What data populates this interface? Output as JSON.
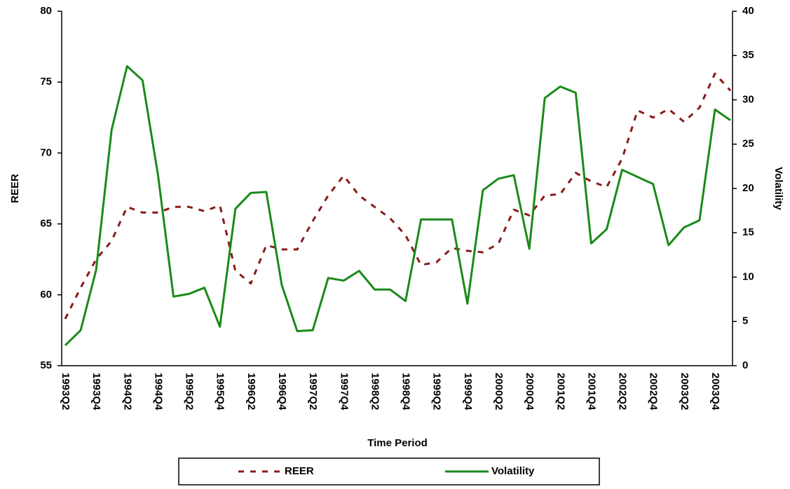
{
  "chart_data": {
    "type": "line",
    "x_label": "Time Period",
    "y_label": "REER",
    "y2_label": "Volatility",
    "categories": [
      "1993Q2",
      null,
      "1993Q4",
      null,
      "1994Q2",
      null,
      "1994Q4",
      null,
      "1995Q2",
      null,
      "1995Q4",
      null,
      "1996Q2",
      null,
      "1996Q4",
      null,
      "1997Q2",
      null,
      "1997Q4",
      null,
      "1998Q2",
      null,
      "1998Q4",
      null,
      "1999Q2",
      null,
      "1999Q4",
      null,
      "2000Q2",
      null,
      "2000Q4",
      null,
      "2001Q2",
      null,
      "2001Q4",
      null,
      "2002Q2",
      null,
      "2002Q4",
      null,
      "2003Q2",
      null,
      "2003Q4",
      null
    ],
    "series": [
      {
        "name": "REER",
        "color": "#8b1a1a",
        "line_style": "dashed",
        "values": [
          58.3,
          60.5,
          62.5,
          63.8,
          66.2,
          65.8,
          65.8,
          66.2,
          66.2,
          65.9,
          66.3,
          61.7,
          60.8,
          63.5,
          63.2,
          63.2,
          65.2,
          67.0,
          68.4,
          67.0,
          66.2,
          65.4,
          64.2,
          62.1,
          62.3,
          63.3,
          63.1,
          63.0,
          63.6,
          66.0,
          65.6,
          67.0,
          67.1,
          68.6,
          68.0,
          67.6,
          69.6,
          73.0,
          72.5,
          73.1,
          72.2,
          73.2,
          75.6,
          74.4
        ]
      },
      {
        "name": "Volatility",
        "color": "#1a8a1a",
        "line_style": "solid",
        "axis": "y2",
        "values": [
          2.3,
          4.0,
          10.8,
          26.6,
          33.8,
          32.2,
          21.5,
          7.8,
          8.1,
          8.8,
          4.4,
          17.7,
          19.5,
          19.6,
          9.1,
          3.9,
          4.0,
          9.9,
          9.6,
          10.7,
          8.6,
          8.6,
          7.3,
          16.5,
          16.5,
          16.5,
          7.0,
          19.8,
          21.1,
          21.5,
          13.2,
          30.2,
          31.5,
          30.8,
          13.8,
          15.4,
          22.1,
          21.3,
          20.5,
          13.6,
          15.6,
          16.4,
          28.9,
          27.7
        ]
      }
    ],
    "ylim": [
      55,
      80
    ],
    "yticks": [
      55,
      60,
      65,
      70,
      75,
      80
    ],
    "y2lim": [
      0,
      40
    ],
    "y2ticks": [
      0,
      5,
      10,
      15,
      20,
      25,
      30,
      35,
      40
    ],
    "grid": false,
    "legend_position": "bottom"
  }
}
